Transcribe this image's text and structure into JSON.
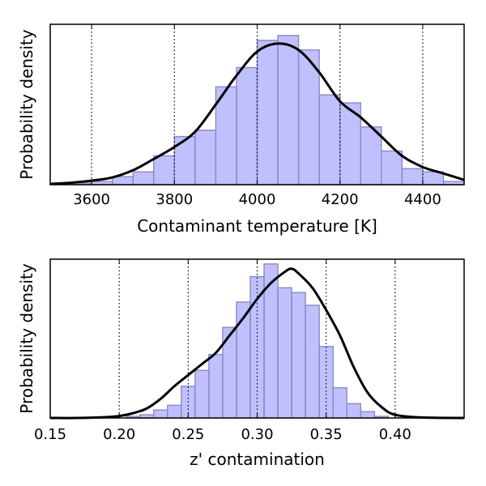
{
  "chart_data": [
    {
      "type": "histogram",
      "xlabel": "Contaminant temperature [K]",
      "ylabel": "Probability density",
      "xlim": [
        3500,
        4500
      ],
      "ylim": [
        0,
        1.0
      ],
      "xticks": [
        3600,
        3800,
        4000,
        4200,
        4400
      ],
      "xtick_labels": [
        "3600",
        "3800",
        "4000",
        "4200",
        "4400"
      ],
      "vlines": [
        3600,
        3800,
        4000,
        4200,
        4400
      ],
      "bins": [
        {
          "x0": 3550,
          "x1": 3600,
          "value": 0.01
        },
        {
          "x0": 3600,
          "x1": 3650,
          "value": 0.02
        },
        {
          "x0": 3650,
          "x1": 3700,
          "value": 0.05
        },
        {
          "x0": 3700,
          "x1": 3750,
          "value": 0.08
        },
        {
          "x0": 3750,
          "x1": 3800,
          "value": 0.18
        },
        {
          "x0": 3800,
          "x1": 3850,
          "value": 0.3
        },
        {
          "x0": 3850,
          "x1": 3900,
          "value": 0.34
        },
        {
          "x0": 3900,
          "x1": 3950,
          "value": 0.61
        },
        {
          "x0": 3950,
          "x1": 4000,
          "value": 0.73
        },
        {
          "x0": 4000,
          "x1": 4050,
          "value": 0.9
        },
        {
          "x0": 4050,
          "x1": 4100,
          "value": 0.93
        },
        {
          "x0": 4100,
          "x1": 4150,
          "value": 0.84
        },
        {
          "x0": 4150,
          "x1": 4200,
          "value": 0.56
        },
        {
          "x0": 4200,
          "x1": 4250,
          "value": 0.51
        },
        {
          "x0": 4250,
          "x1": 4300,
          "value": 0.36
        },
        {
          "x0": 4300,
          "x1": 4350,
          "value": 0.21
        },
        {
          "x0": 4350,
          "x1": 4400,
          "value": 0.1
        },
        {
          "x0": 4400,
          "x1": 4450,
          "value": 0.08
        },
        {
          "x0": 4450,
          "x1": 4500,
          "value": 0.02
        }
      ],
      "kde": {
        "x": [
          3500,
          3550,
          3600,
          3650,
          3700,
          3750,
          3800,
          3850,
          3900,
          3950,
          4000,
          4050,
          4100,
          4150,
          4200,
          4250,
          4300,
          4350,
          4400,
          4450,
          4500
        ],
        "y": [
          0.005,
          0.012,
          0.025,
          0.045,
          0.09,
          0.16,
          0.235,
          0.33,
          0.5,
          0.68,
          0.83,
          0.88,
          0.84,
          0.7,
          0.52,
          0.42,
          0.3,
          0.18,
          0.11,
          0.07,
          0.03
        ]
      }
    },
    {
      "type": "histogram",
      "xlabel": "z' contamination",
      "ylabel": "Probability density",
      "xlim": [
        0.15,
        0.45
      ],
      "ylim": [
        0,
        1.0
      ],
      "xticks": [
        0.15,
        0.2,
        0.25,
        0.3,
        0.35,
        0.4
      ],
      "xtick_labels": [
        "0.15",
        "0.20",
        "0.25",
        "0.30",
        "0.35",
        "0.40"
      ],
      "vlines": [
        0.2,
        0.25,
        0.3,
        0.35,
        0.4
      ],
      "bins": [
        {
          "x0": 0.205,
          "x1": 0.215,
          "value": 0.01
        },
        {
          "x0": 0.215,
          "x1": 0.225,
          "value": 0.02
        },
        {
          "x0": 0.225,
          "x1": 0.235,
          "value": 0.05
        },
        {
          "x0": 0.235,
          "x1": 0.245,
          "value": 0.08
        },
        {
          "x0": 0.245,
          "x1": 0.255,
          "value": 0.2
        },
        {
          "x0": 0.255,
          "x1": 0.265,
          "value": 0.3
        },
        {
          "x0": 0.265,
          "x1": 0.275,
          "value": 0.4
        },
        {
          "x0": 0.275,
          "x1": 0.285,
          "value": 0.57
        },
        {
          "x0": 0.285,
          "x1": 0.295,
          "value": 0.73
        },
        {
          "x0": 0.295,
          "x1": 0.305,
          "value": 0.89
        },
        {
          "x0": 0.305,
          "x1": 0.315,
          "value": 0.97
        },
        {
          "x0": 0.315,
          "x1": 0.325,
          "value": 0.82
        },
        {
          "x0": 0.325,
          "x1": 0.335,
          "value": 0.79
        },
        {
          "x0": 0.335,
          "x1": 0.345,
          "value": 0.71
        },
        {
          "x0": 0.345,
          "x1": 0.355,
          "value": 0.45
        },
        {
          "x0": 0.355,
          "x1": 0.365,
          "value": 0.19
        },
        {
          "x0": 0.365,
          "x1": 0.375,
          "value": 0.09
        },
        {
          "x0": 0.375,
          "x1": 0.385,
          "value": 0.04
        },
        {
          "x0": 0.385,
          "x1": 0.395,
          "value": 0.01
        }
      ],
      "kde": {
        "x": [
          0.15,
          0.17,
          0.19,
          0.2,
          0.21,
          0.22,
          0.23,
          0.24,
          0.25,
          0.26,
          0.27,
          0.28,
          0.29,
          0.3,
          0.31,
          0.32,
          0.325,
          0.33,
          0.34,
          0.35,
          0.36,
          0.37,
          0.38,
          0.39,
          0.4,
          0.42,
          0.45
        ],
        "y": [
          0.0,
          0.0,
          0.005,
          0.012,
          0.03,
          0.06,
          0.12,
          0.2,
          0.27,
          0.34,
          0.41,
          0.52,
          0.63,
          0.75,
          0.85,
          0.92,
          0.94,
          0.91,
          0.82,
          0.68,
          0.52,
          0.32,
          0.16,
          0.07,
          0.02,
          0.003,
          0.0
        ]
      }
    }
  ]
}
